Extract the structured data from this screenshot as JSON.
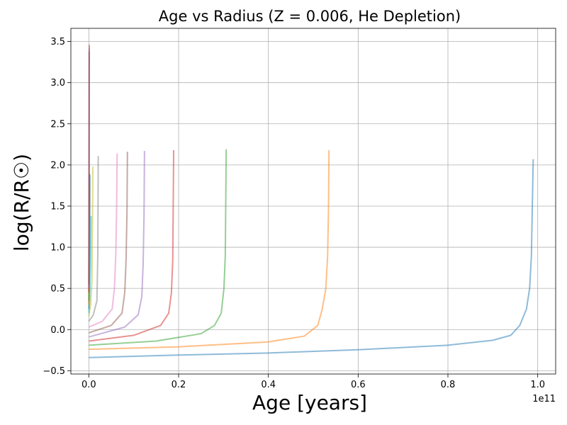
{
  "chart_data": {
    "type": "line",
    "title": "Age vs Radius (Z = 0.006, He Depletion)",
    "xlabel": "Age [years]",
    "ylabel": "log(R/R☉)",
    "x_offset_label": "1e11",
    "xlim": [
      -0.04,
      1.04
    ],
    "ylim": [
      -0.54,
      3.66
    ],
    "x_ticks": [
      0.0,
      0.2,
      0.4,
      0.6,
      0.8,
      1.0
    ],
    "x_tick_labels": [
      "0.0",
      "0.2",
      "0.4",
      "0.6",
      "0.8",
      "1.0"
    ],
    "y_ticks": [
      -0.5,
      0.0,
      0.5,
      1.0,
      1.5,
      2.0,
      2.5,
      3.0,
      3.5
    ],
    "y_tick_labels": [
      "−0.5",
      "0.0",
      "0.5",
      "1.0",
      "1.5",
      "2.0",
      "2.5",
      "3.0",
      "3.5"
    ],
    "grid": true,
    "legend": "none",
    "series": [
      {
        "color": "#1f77b4",
        "x": [
          0,
          0.2,
          0.4,
          0.6,
          0.8,
          0.9,
          0.94,
          0.96,
          0.975,
          0.982,
          0.986,
          0.988,
          0.99
        ],
        "y": [
          -0.34,
          -0.31,
          -0.285,
          -0.245,
          -0.19,
          -0.13,
          -0.07,
          0.05,
          0.25,
          0.5,
          0.9,
          1.5,
          2.07
        ]
      },
      {
        "color": "#ff7f0e",
        "x": [
          0,
          0.2,
          0.4,
          0.48,
          0.51,
          0.52,
          0.528,
          0.532,
          0.534,
          0.535
        ],
        "y": [
          -0.24,
          -0.21,
          -0.15,
          -0.08,
          0.05,
          0.25,
          0.5,
          0.9,
          1.5,
          2.18
        ]
      },
      {
        "color": "#2ca02c",
        "x": [
          0,
          0.15,
          0.25,
          0.28,
          0.295,
          0.301,
          0.304,
          0.305,
          0.306
        ],
        "y": [
          -0.19,
          -0.14,
          -0.05,
          0.05,
          0.2,
          0.5,
          0.9,
          1.5,
          2.19
        ]
      },
      {
        "color": "#d62728",
        "x": [
          0,
          0.1,
          0.16,
          0.178,
          0.184,
          0.187,
          0.188,
          0.189
        ],
        "y": [
          -0.14,
          -0.07,
          0.05,
          0.2,
          0.45,
          0.85,
          1.5,
          2.18
        ]
      },
      {
        "color": "#9467bd",
        "x": [
          0,
          0.08,
          0.11,
          0.118,
          0.121,
          0.123,
          0.124
        ],
        "y": [
          -0.09,
          0.03,
          0.18,
          0.4,
          0.8,
          1.4,
          2.17
        ]
      },
      {
        "color": "#8c564b",
        "x": [
          0,
          0.05,
          0.074,
          0.08,
          0.083,
          0.085,
          0.086
        ],
        "y": [
          -0.04,
          0.05,
          0.2,
          0.45,
          0.85,
          1.45,
          2.16
        ]
      },
      {
        "color": "#e377c2",
        "x": [
          0,
          0.03,
          0.052,
          0.057,
          0.06,
          0.062,
          0.063
        ],
        "y": [
          0.03,
          0.1,
          0.25,
          0.5,
          0.9,
          1.5,
          2.14
        ]
      },
      {
        "color": "#7f7f7f",
        "x": [
          0,
          0.01,
          0.018,
          0.02,
          0.021
        ],
        "y": [
          0.1,
          0.18,
          0.35,
          0.9,
          2.11
        ]
      },
      {
        "color": "#bcbd22",
        "x": [
          0,
          0.004,
          0.007,
          0.008,
          0.009
        ],
        "y": [
          0.16,
          0.3,
          0.6,
          1.2,
          1.98
        ]
      },
      {
        "color": "#17becf",
        "x": [
          0,
          0.002,
          0.004,
          0.005
        ],
        "y": [
          0.2,
          0.4,
          0.8,
          1.38
        ]
      },
      {
        "color": "#1f77b4",
        "x": [
          0,
          0.001,
          0.002,
          0.0025
        ],
        "y": [
          0.25,
          0.6,
          1.1,
          1.88
        ]
      },
      {
        "color": "#ff7f0e",
        "x": [
          0,
          0.001,
          0.0015
        ],
        "y": [
          0.3,
          0.9,
          1.75
        ]
      },
      {
        "color": "#2ca02c",
        "x": [
          0,
          0.0008,
          0.0012
        ],
        "y": [
          0.35,
          1.0,
          1.9
        ]
      },
      {
        "color": "#d62728",
        "x": [
          0,
          0.0005,
          0.0008,
          0.001
        ],
        "y": [
          0.45,
          1.5,
          2.6,
          3.46
        ]
      },
      {
        "color": "#9467bd",
        "x": [
          0,
          0.0004,
          0.0008
        ],
        "y": [
          0.5,
          1.6,
          3.42
        ]
      },
      {
        "color": "#8c564b",
        "x": [
          0,
          0.0004,
          0.0007
        ],
        "y": [
          0.55,
          1.8,
          3.38
        ]
      }
    ]
  }
}
